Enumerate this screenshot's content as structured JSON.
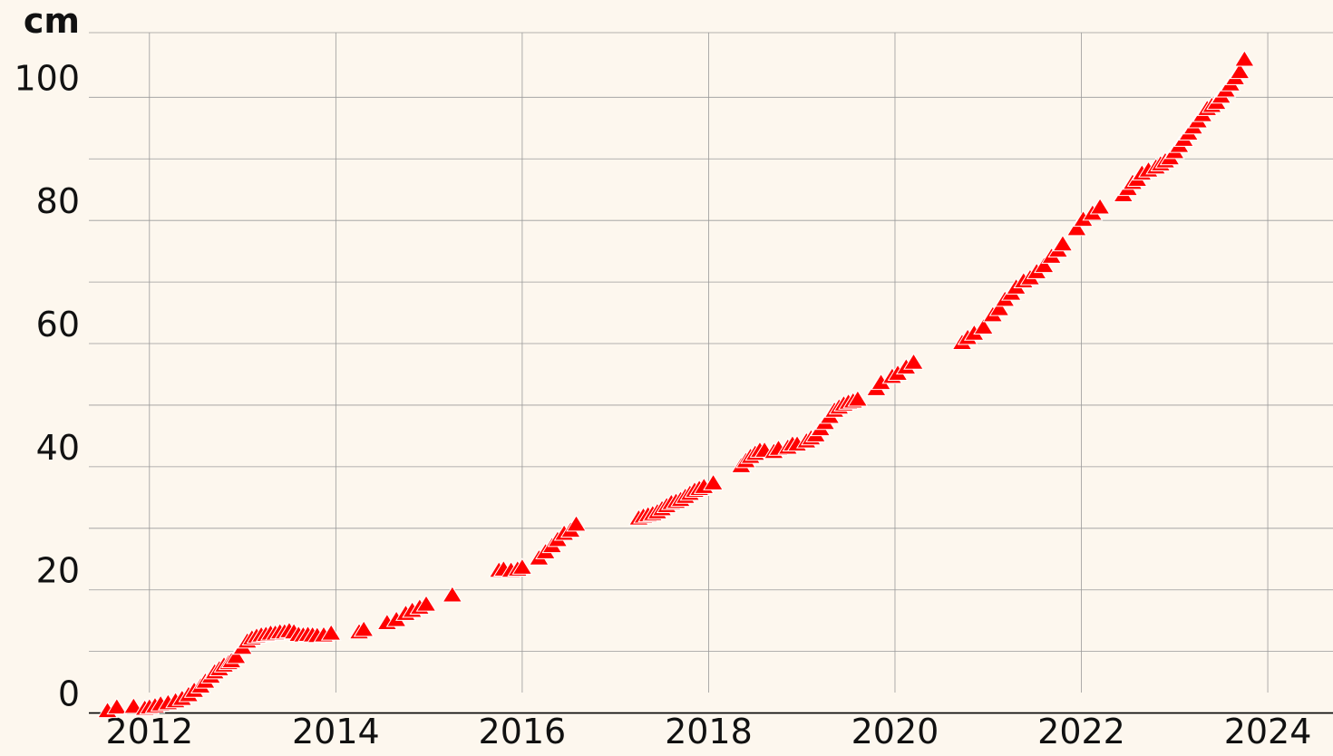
{
  "chart_data": {
    "type": "scatter",
    "ylabel": "cm",
    "xlabel": "",
    "title": "",
    "x_ticks": [
      2012,
      2014,
      2016,
      2018,
      2020,
      2022,
      2024
    ],
    "y_ticks": [
      0,
      20,
      40,
      60,
      80,
      100
    ],
    "xlim": [
      2011.35,
      2024.7
    ],
    "ylim": [
      -0.8,
      110.5
    ],
    "grid": true,
    "marker": "triangle",
    "colors": {
      "background": "#fdf7ee",
      "marker": "#ff0000",
      "marker_edge": "#ffffff",
      "grid": "#9a9a9a",
      "zero_line": "#000000"
    },
    "series": [
      {
        "name": "",
        "x": [
          2011.55,
          2011.65,
          2011.83,
          2011.95,
          2012.0,
          2012.06,
          2012.12,
          2012.2,
          2012.28,
          2012.35,
          2012.42,
          2012.48,
          2012.55,
          2012.6,
          2012.66,
          2012.7,
          2012.75,
          2012.8,
          2012.85,
          2012.88,
          2012.93,
          2013.0,
          2013.05,
          2013.1,
          2013.15,
          2013.2,
          2013.25,
          2013.3,
          2013.35,
          2013.4,
          2013.45,
          2013.5,
          2013.55,
          2013.6,
          2013.65,
          2013.7,
          2013.75,
          2013.8,
          2013.87,
          2013.95,
          2014.25,
          2014.3,
          2014.55,
          2014.65,
          2014.75,
          2014.82,
          2014.9,
          2014.97,
          2015.25,
          2015.75,
          2015.8,
          2015.88,
          2015.95,
          2016.0,
          2016.18,
          2016.25,
          2016.32,
          2016.38,
          2016.45,
          2016.52,
          2016.58,
          2017.25,
          2017.3,
          2017.35,
          2017.4,
          2017.45,
          2017.5,
          2017.55,
          2017.6,
          2017.65,
          2017.7,
          2017.75,
          2017.8,
          2017.85,
          2017.9,
          2017.95,
          2018.05,
          2018.35,
          2018.4,
          2018.45,
          2018.5,
          2018.55,
          2018.6,
          2018.7,
          2018.75,
          2018.85,
          2018.9,
          2018.95,
          2019.05,
          2019.1,
          2019.15,
          2019.2,
          2019.25,
          2019.3,
          2019.35,
          2019.4,
          2019.45,
          2019.5,
          2019.55,
          2019.6,
          2019.8,
          2019.85,
          2019.97,
          2020.03,
          2020.12,
          2020.2,
          2020.72,
          2020.78,
          2020.85,
          2020.95,
          2021.05,
          2021.12,
          2021.18,
          2021.25,
          2021.3,
          2021.38,
          2021.45,
          2021.52,
          2021.6,
          2021.68,
          2021.75,
          2021.8,
          2021.95,
          2022.02,
          2022.12,
          2022.2,
          2022.45,
          2022.5,
          2022.55,
          2022.6,
          2022.65,
          2022.72,
          2022.8,
          2022.85,
          2022.9,
          2022.95,
          2023.0,
          2023.05,
          2023.1,
          2023.15,
          2023.2,
          2023.25,
          2023.3,
          2023.35,
          2023.4,
          2023.45,
          2023.5,
          2023.55,
          2023.6,
          2023.65,
          2023.7,
          2023.75
        ],
        "y": [
          0.2,
          0.8,
          0.9,
          0.6,
          0.8,
          1.0,
          1.3,
          1.5,
          1.8,
          2.2,
          2.8,
          3.5,
          4.2,
          5.0,
          5.8,
          6.5,
          7.0,
          7.6,
          8.0,
          8.3,
          9.0,
          10.5,
          11.5,
          12.0,
          12.3,
          12.5,
          12.6,
          12.8,
          12.8,
          13.0,
          13.0,
          13.2,
          13.0,
          12.6,
          12.5,
          12.6,
          12.5,
          12.4,
          12.5,
          12.8,
          13.0,
          13.4,
          14.5,
          15.0,
          16.0,
          16.5,
          17.0,
          17.5,
          19.0,
          23.0,
          23.2,
          23.0,
          23.2,
          23.5,
          25.0,
          26.0,
          27.0,
          28.0,
          29.0,
          29.5,
          30.5,
          31.5,
          31.8,
          32.0,
          32.2,
          32.5,
          33.0,
          33.5,
          34.0,
          34.2,
          34.5,
          35.0,
          35.5,
          36.0,
          36.3,
          36.6,
          37.2,
          40.0,
          40.8,
          41.5,
          42.0,
          42.5,
          42.5,
          42.3,
          42.8,
          43.0,
          43.5,
          43.5,
          44.0,
          44.5,
          45.0,
          46.0,
          47.0,
          48.0,
          49.0,
          49.5,
          50.0,
          50.3,
          50.5,
          50.8,
          52.5,
          53.5,
          54.5,
          55.0,
          56.0,
          56.8,
          60.0,
          60.8,
          61.5,
          62.5,
          64.5,
          65.5,
          67.0,
          68.0,
          69.0,
          70.0,
          70.5,
          71.5,
          72.5,
          74.0,
          75.0,
          76.0,
          78.5,
          80.0,
          81.0,
          82.0,
          84.0,
          85.0,
          86.0,
          86.5,
          87.5,
          88.0,
          88.5,
          89.0,
          89.5,
          90.0,
          91.0,
          92.0,
          93.0,
          94.0,
          95.0,
          96.0,
          97.0,
          98.0,
          98.5,
          99.0,
          100.0,
          101.0,
          102.0,
          103.0,
          104.0,
          106.0
        ]
      }
    ]
  }
}
